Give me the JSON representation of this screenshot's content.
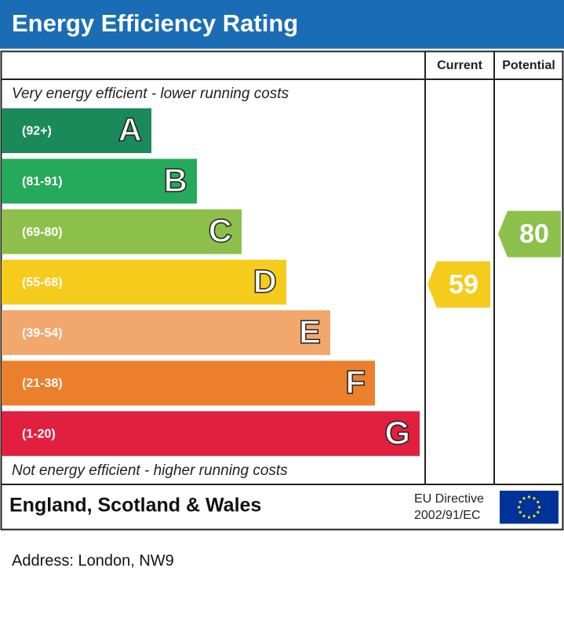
{
  "title": "Energy Efficiency Rating",
  "columns": {
    "current": "Current",
    "potential": "Potential"
  },
  "top_note": "Very energy efficient - lower running costs",
  "bottom_note": "Not energy efficient - higher running costs",
  "bands": [
    {
      "range": "(92+)",
      "letter": "A",
      "color": "#1a8a5a"
    },
    {
      "range": "(81-91)",
      "letter": "B",
      "color": "#25a95a"
    },
    {
      "range": "(69-80)",
      "letter": "C",
      "color": "#8dc04a"
    },
    {
      "range": "(55-68)",
      "letter": "D",
      "color": "#f5cb1c"
    },
    {
      "range": "(39-54)",
      "letter": "E",
      "color": "#f2a86c"
    },
    {
      "range": "(21-38)",
      "letter": "F",
      "color": "#eb7f2b"
    },
    {
      "range": "(1-20)",
      "letter": "G",
      "color": "#e0203e"
    }
  ],
  "current": {
    "value": 59,
    "band": 3
  },
  "potential": {
    "value": 80,
    "band": 2
  },
  "footer": {
    "region": "England, Scotland & Wales",
    "directive_line1": "EU Directive",
    "directive_line2": "2002/91/EC"
  },
  "address": "Address: London, NW9"
}
